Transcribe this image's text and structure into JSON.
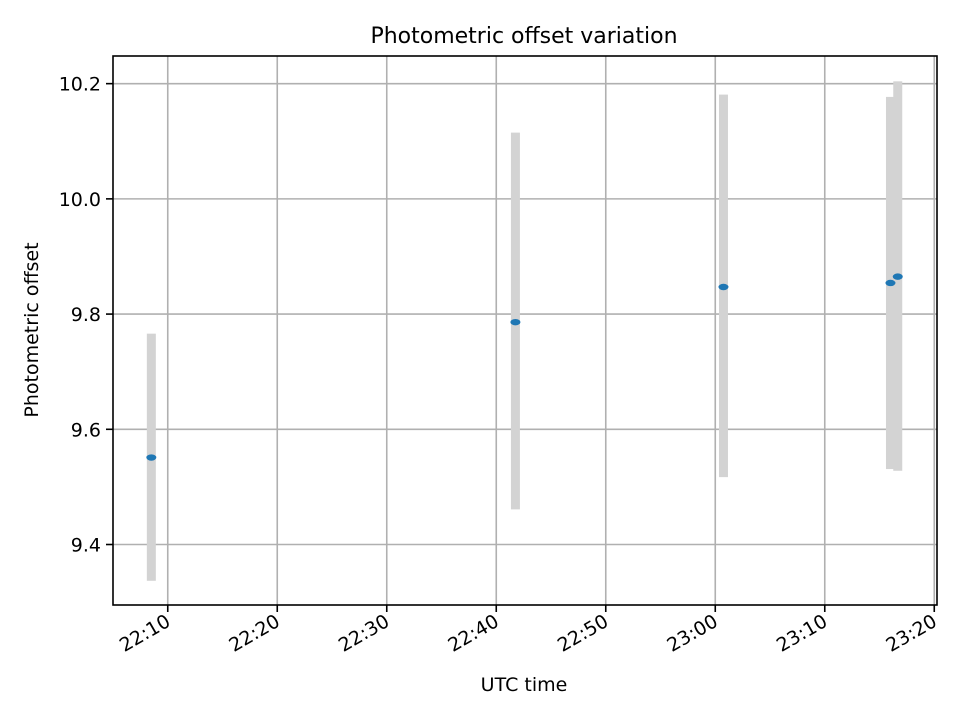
{
  "chart_data": {
    "type": "scatter",
    "title": "Photometric offset variation",
    "xlabel": "UTC time",
    "ylabel": "Photometric offset",
    "x_axis": {
      "kind": "time",
      "range": [
        "22:05:00",
        "23:20:15"
      ],
      "ticks": [
        "22:10",
        "22:20",
        "22:30",
        "22:40",
        "22:50",
        "23:00",
        "23:10",
        "23:20"
      ]
    },
    "y_axis": {
      "range": [
        9.295,
        10.248
      ],
      "ticks": [
        9.4,
        9.6,
        9.8,
        10.0,
        10.2
      ],
      "tick_labels": [
        "9.4",
        "9.6",
        "9.8",
        "10.0",
        "10.2"
      ]
    },
    "grid": true,
    "colors": {
      "point": "#1f77b4",
      "errorbar": "#d3d3d3"
    },
    "points": [
      {
        "time": "22:08:30",
        "y": 9.551,
        "y_low": 9.337,
        "y_high": 9.766
      },
      {
        "time": "22:41:45",
        "y": 9.786,
        "y_low": 9.461,
        "y_high": 10.115
      },
      {
        "time": "23:00:45",
        "y": 9.847,
        "y_low": 9.517,
        "y_high": 10.181
      },
      {
        "time": "23:16:00",
        "y": 9.854,
        "y_low": 9.531,
        "y_high": 10.177
      },
      {
        "time": "23:16:40",
        "y": 9.865,
        "y_low": 9.528,
        "y_high": 10.204
      }
    ]
  }
}
